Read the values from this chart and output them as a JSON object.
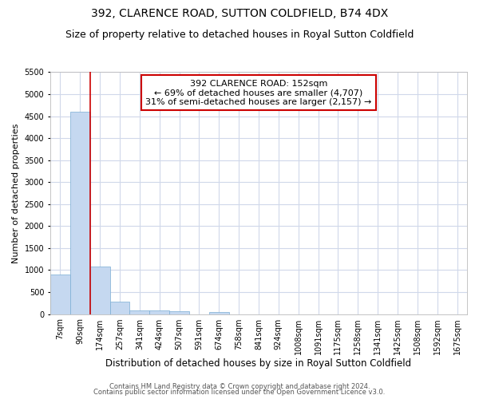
{
  "title1": "392, CLARENCE ROAD, SUTTON COLDFIELD, B74 4DX",
  "title2": "Size of property relative to detached houses in Royal Sutton Coldfield",
  "xlabel": "Distribution of detached houses by size in Royal Sutton Coldfield",
  "ylabel": "Number of detached properties",
  "categories": [
    "7sqm",
    "90sqm",
    "174sqm",
    "257sqm",
    "341sqm",
    "424sqm",
    "507sqm",
    "591sqm",
    "674sqm",
    "758sqm",
    "841sqm",
    "924sqm",
    "1008sqm",
    "1091sqm",
    "1175sqm",
    "1258sqm",
    "1341sqm",
    "1425sqm",
    "1508sqm",
    "1592sqm",
    "1675sqm"
  ],
  "values": [
    900,
    4600,
    1075,
    290,
    90,
    80,
    65,
    0,
    55,
    0,
    0,
    0,
    0,
    0,
    0,
    0,
    0,
    0,
    0,
    0,
    0
  ],
  "bar_color": "#c5d8f0",
  "bar_edge_color": "#7aadd4",
  "vline_color": "#cc0000",
  "annotation_text": "392 CLARENCE ROAD: 152sqm\n← 69% of detached houses are smaller (4,707)\n31% of semi-detached houses are larger (2,157) →",
  "annotation_box_color": "#ffffff",
  "annotation_box_edge": "#cc0000",
  "ylim": [
    0,
    5500
  ],
  "yticks": [
    0,
    500,
    1000,
    1500,
    2000,
    2500,
    3000,
    3500,
    4000,
    4500,
    5000,
    5500
  ],
  "footer1": "Contains HM Land Registry data © Crown copyright and database right 2024.",
  "footer2": "Contains public sector information licensed under the Open Government Licence v3.0.",
  "bg_color": "#ffffff",
  "grid_color": "#d0d8ea",
  "title1_fontsize": 10,
  "title2_fontsize": 9,
  "tick_fontsize": 7,
  "ylabel_fontsize": 8,
  "xlabel_fontsize": 8.5,
  "footer_fontsize": 6,
  "ann_fontsize": 8
}
